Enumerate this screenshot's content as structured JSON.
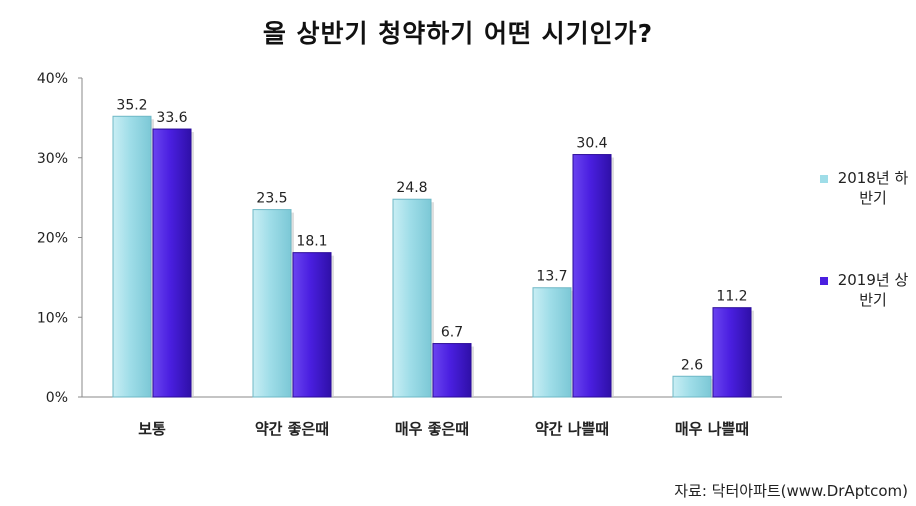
{
  "chart_data": {
    "type": "bar",
    "title": "올 상반기 청약하기 어떤 시기인가?",
    "categories": [
      "보통",
      "약간 좋은때",
      "매우 좋은때",
      "약간 나쁠때",
      "매우 나쁠때"
    ],
    "series": [
      {
        "name": "2018년 하반기",
        "values": [
          35.2,
          23.5,
          24.8,
          13.7,
          2.6
        ],
        "color": "#9fdde8"
      },
      {
        "name": "2019년 상반기",
        "values": [
          33.6,
          18.1,
          6.7,
          30.4,
          11.2
        ],
        "color": "#4a1fe0"
      }
    ],
    "ylim": [
      0,
      40
    ],
    "yticks": [
      "0%",
      "10%",
      "20%",
      "30%",
      "40%"
    ],
    "xlabel": "",
    "ylabel": "",
    "grid": false,
    "legend_position": "right"
  },
  "legend": [
    {
      "name": "2018년 하반기",
      "color": "#9fdde8"
    },
    {
      "name": "2019년 상반기",
      "color": "#4a1fe0"
    }
  ],
  "source": "자료: 닥터아파트(www.DrAptcom)"
}
